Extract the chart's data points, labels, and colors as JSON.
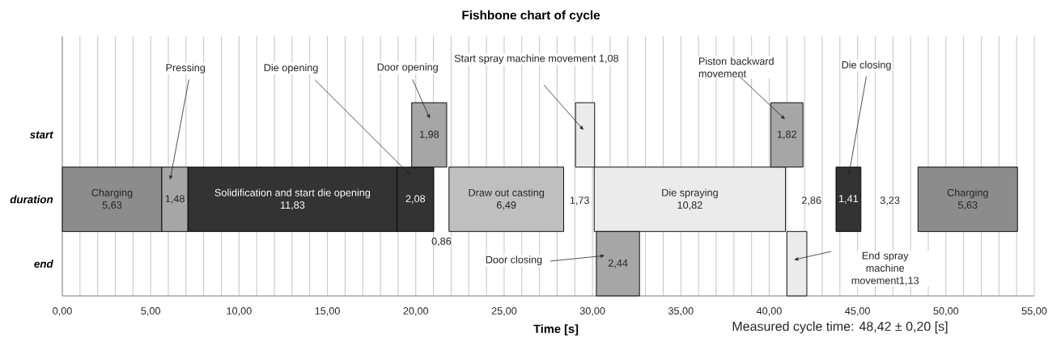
{
  "chart_data": {
    "type": "bar",
    "orientation": "horizontal",
    "title": "Fishbone chart of cycle",
    "xlabel": "Time [s]",
    "categories": [
      "start",
      "duration",
      "end"
    ],
    "series": [
      {
        "name": "Charging",
        "color": "#8c8c8c",
        "values": [
          null,
          5.63,
          null
        ],
        "base": [
          null,
          0,
          null
        ],
        "value_labels": [
          null,
          "5,63",
          null
        ]
      },
      {
        "color": "#a6a6a6",
        "values": [
          null,
          1.48,
          null
        ],
        "base": [
          null,
          5.63,
          null
        ],
        "value_labels": [
          null,
          "1,48",
          null
        ]
      },
      {
        "name": "Solidification and start die opening",
        "color": "#333333",
        "values": [
          null,
          11.83,
          null
        ],
        "base": [
          null,
          7.11,
          null
        ],
        "value_labels": [
          null,
          "11,83",
          null
        ]
      },
      {
        "color": "#333333",
        "values": [
          null,
          2.08,
          null
        ],
        "base": [
          null,
          18.94,
          null
        ],
        "value_labels": [
          null,
          "2,08",
          null
        ]
      },
      {
        "color": "#a6a6a6",
        "values": [
          1.98,
          null,
          null
        ],
        "base": [
          19.77,
          null,
          null
        ],
        "value_labels": [
          "1,98",
          null,
          null
        ]
      },
      {
        "name": "Draw out casting",
        "color": "#bfbfbf",
        "values": [
          null,
          6.49,
          null
        ],
        "base": [
          null,
          21.88,
          null
        ],
        "value_labels": [
          null,
          "6,49",
          null
        ]
      },
      {
        "color": "#ebebeb",
        "values": [
          1.08,
          null,
          null
        ],
        "base": [
          29.04,
          null,
          null
        ]
      },
      {
        "name": "Die spraying",
        "color": "#ebebeb",
        "values": [
          null,
          10.82,
          null
        ],
        "base": [
          null,
          30.1,
          null
        ],
        "value_labels": [
          null,
          "10,82",
          null
        ]
      },
      {
        "color": "#a6a6a6",
        "values": [
          1.82,
          null,
          null
        ],
        "base": [
          40.09,
          null,
          null
        ],
        "value_labels": [
          "1,82",
          null,
          null
        ]
      },
      {
        "color": "#333333",
        "values": [
          null,
          1.41,
          null
        ],
        "base": [
          null,
          43.78,
          null
        ],
        "value_labels": [
          null,
          "1,41",
          null
        ]
      },
      {
        "name": "Charging",
        "color": "#8c8c8c",
        "values": [
          null,
          5.63,
          null
        ],
        "base": [
          null,
          48.42,
          null
        ],
        "value_labels": [
          null,
          "5,63",
          null
        ]
      },
      {
        "color": "#a6a6a6",
        "values": [
          null,
          null,
          2.44
        ],
        "base": [
          null,
          null,
          30.22
        ],
        "value_labels": [
          null,
          null,
          "2,44"
        ]
      },
      {
        "color": "#ebebeb",
        "values": [
          null,
          null,
          1.13
        ],
        "base": [
          null,
          null,
          41.0
        ]
      }
    ],
    "annotations": [
      "Pressing",
      "Die opening",
      "Door opening",
      "Start spray machine movement 1,08",
      "Piston backward movement",
      "Die closing",
      "Door closing",
      "End spray machine movement1,13",
      "0,86",
      "1,73",
      "2,86",
      "3,23",
      "Measured cycle time: 48,42 ± 0,20 [s]"
    ],
    "xlim": [
      0,
      55
    ],
    "xticks": [
      {
        "value": 0,
        "label": "0,00"
      },
      {
        "value": 1,
        "label": null
      },
      {
        "value": 2,
        "label": null
      },
      {
        "value": 3,
        "label": null
      },
      {
        "value": 4,
        "label": null
      },
      {
        "value": 5,
        "label": "5,00"
      },
      {
        "value": 6,
        "label": null
      },
      {
        "value": 7,
        "label": null
      },
      {
        "value": 8,
        "label": null
      },
      {
        "value": 9,
        "label": null
      },
      {
        "value": 10,
        "label": "10,00"
      },
      {
        "value": 11,
        "label": null
      },
      {
        "value": 12,
        "label": null
      },
      {
        "value": 13,
        "label": null
      },
      {
        "value": 14,
        "label": null
      },
      {
        "value": 15,
        "label": "15,00"
      },
      {
        "value": 16,
        "label": null
      },
      {
        "value": 17,
        "label": null
      },
      {
        "value": 18,
        "label": null
      },
      {
        "value": 19,
        "label": null
      },
      {
        "value": 20,
        "label": "20,00"
      },
      {
        "value": 21,
        "label": null
      },
      {
        "value": 22,
        "label": null
      },
      {
        "value": 23,
        "label": null
      },
      {
        "value": 24,
        "label": null
      },
      {
        "value": 25,
        "label": "25,00"
      },
      {
        "value": 26,
        "label": null
      },
      {
        "value": 27,
        "label": null
      },
      {
        "value": 28,
        "label": null
      },
      {
        "value": 29,
        "label": null
      },
      {
        "value": 30,
        "label": "30,00"
      },
      {
        "value": 31,
        "label": null
      },
      {
        "value": 32,
        "label": null
      },
      {
        "value": 33,
        "label": null
      },
      {
        "value": 34,
        "label": null
      },
      {
        "value": 35,
        "label": "35,00"
      },
      {
        "value": 36,
        "label": null
      },
      {
        "value": 37,
        "label": null
      },
      {
        "value": 38,
        "label": null
      },
      {
        "value": 39,
        "label": null
      },
      {
        "value": 40,
        "label": "40,00"
      },
      {
        "value": 41,
        "label": null
      },
      {
        "value": 42,
        "label": null
      },
      {
        "value": 43,
        "label": null
      },
      {
        "value": 44,
        "label": null
      },
      {
        "value": 45,
        "label": "45,00"
      },
      {
        "value": 46,
        "label": null
      },
      {
        "value": 47,
        "label": null
      },
      {
        "value": 48,
        "label": null
      },
      {
        "value": 49,
        "label": null
      },
      {
        "value": 50,
        "label": "50,00"
      },
      {
        "value": 51,
        "label": null
      },
      {
        "value": 52,
        "label": null
      },
      {
        "value": 53,
        "label": null
      },
      {
        "value": 54,
        "label": null
      },
      {
        "value": 55,
        "label": "55,00"
      }
    ],
    "grid": "x"
  }
}
